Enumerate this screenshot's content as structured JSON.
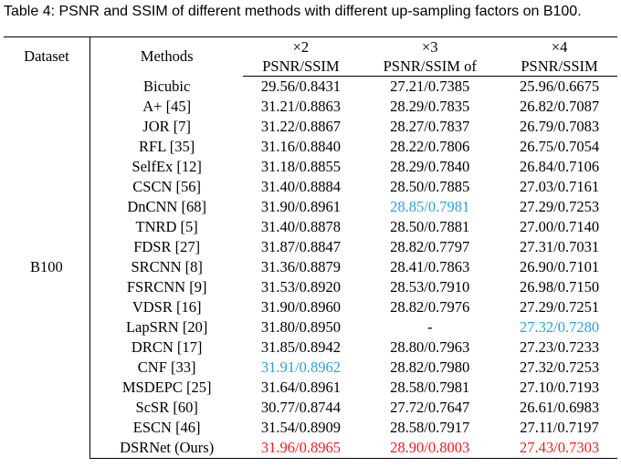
{
  "caption": "Table 4: PSNR and SSIM of different methods with different up-sampling factors on B100.",
  "header": {
    "dataset": "Dataset",
    "methods": "Methods",
    "scales": [
      "×2",
      "×3",
      "×4"
    ],
    "metrics": [
      "PSNR/SSIM",
      "PSNR/SSIM of",
      "PSNR/SSIM"
    ]
  },
  "dataset_name": "B100",
  "colors": {
    "best": "#ff1a1a",
    "second": "#2aa0e0"
  },
  "rows": [
    {
      "method": "Bicubic",
      "x2": "29.56/0.8431",
      "x3": "27.21/0.7385",
      "x4": "25.96/0.6675"
    },
    {
      "method": "A+ [45]",
      "x2": "31.21/0.8863",
      "x3": "28.29/0.7835",
      "x4": "26.82/0.7087"
    },
    {
      "method": "JOR [7]",
      "x2": "31.22/0.8867",
      "x3": "28.27/0.7837",
      "x4": "26.79/0.7083"
    },
    {
      "method": "RFL [35]",
      "x2": "31.16/0.8840",
      "x3": "28.22/0.7806",
      "x4": "26.75/0.7054"
    },
    {
      "method": "SelfEx [12]",
      "x2": "31.18/0.8855",
      "x3": "28.29/0.7840",
      "x4": "26.84/0.7106"
    },
    {
      "method": "CSCN [56]",
      "x2": "31.40/0.8884",
      "x3": "28.50/0.7885",
      "x4": "27.03/0.7161"
    },
    {
      "method": "DnCNN [68]",
      "x2": "31.90/0.8961",
      "x3": "28.85/0.7981",
      "x4": "27.29/0.7253",
      "x3_hl": "blue"
    },
    {
      "method": "TNRD [5]",
      "x2": "31.40/0.8878",
      "x3": "28.50/0.7881",
      "x4": "27.00/0.7140"
    },
    {
      "method": "FDSR [27]",
      "x2": "31.87/0.8847",
      "x3": "28.82/0.7797",
      "x4": "27.31/0.7031"
    },
    {
      "method": "SRCNN [8]",
      "x2": "31.36/0.8879",
      "x3": "28.41/0.7863",
      "x4": "26.90/0.7101"
    },
    {
      "method": "FSRCNN [9]",
      "x2": "31.53/0.8920",
      "x3": "28.53/0.7910",
      "x4": "26.98/0.7150"
    },
    {
      "method": "VDSR [16]",
      "x2": "31.90/0.8960",
      "x3": "28.82/0.7976",
      "x4": "27.29/0.7251"
    },
    {
      "method": "LapSRN [20]",
      "x2": "31.80/0.8950",
      "x3": "-",
      "x4": "27.32/0.7280",
      "x4_hl": "blue"
    },
    {
      "method": "DRCN [17]",
      "x2": "31.85/0.8942",
      "x3": "28.80/0.7963",
      "x4": "27.23/0.7233"
    },
    {
      "method": "CNF [33]",
      "x2": "31.91/0.8962",
      "x3": "28.82/0.7980",
      "x4": "27.32/0.7253",
      "x2_hl": "blue"
    },
    {
      "method": "MSDEPC [25]",
      "x2": "31.64/0.8961",
      "x3": "28.58/0.7981",
      "x4": "27.10/0.7193"
    },
    {
      "method": "ScSR [60]",
      "x2": "30.77/0.8744",
      "x3": "27.72/0.7647",
      "x4": "26.61/0.6983"
    },
    {
      "method": "ESCN [46]",
      "x2": "31.54/0.8909",
      "x3": "28.58/0.7917",
      "x4": "27.11/0.7197"
    },
    {
      "method": "DSRNet (Ours)",
      "x2": "31.96/0.8965",
      "x3": "28.90/0.8003",
      "x4": "27.43/0.7303",
      "x2_hl": "red",
      "x3_hl": "red",
      "x4_hl": "red"
    }
  ]
}
